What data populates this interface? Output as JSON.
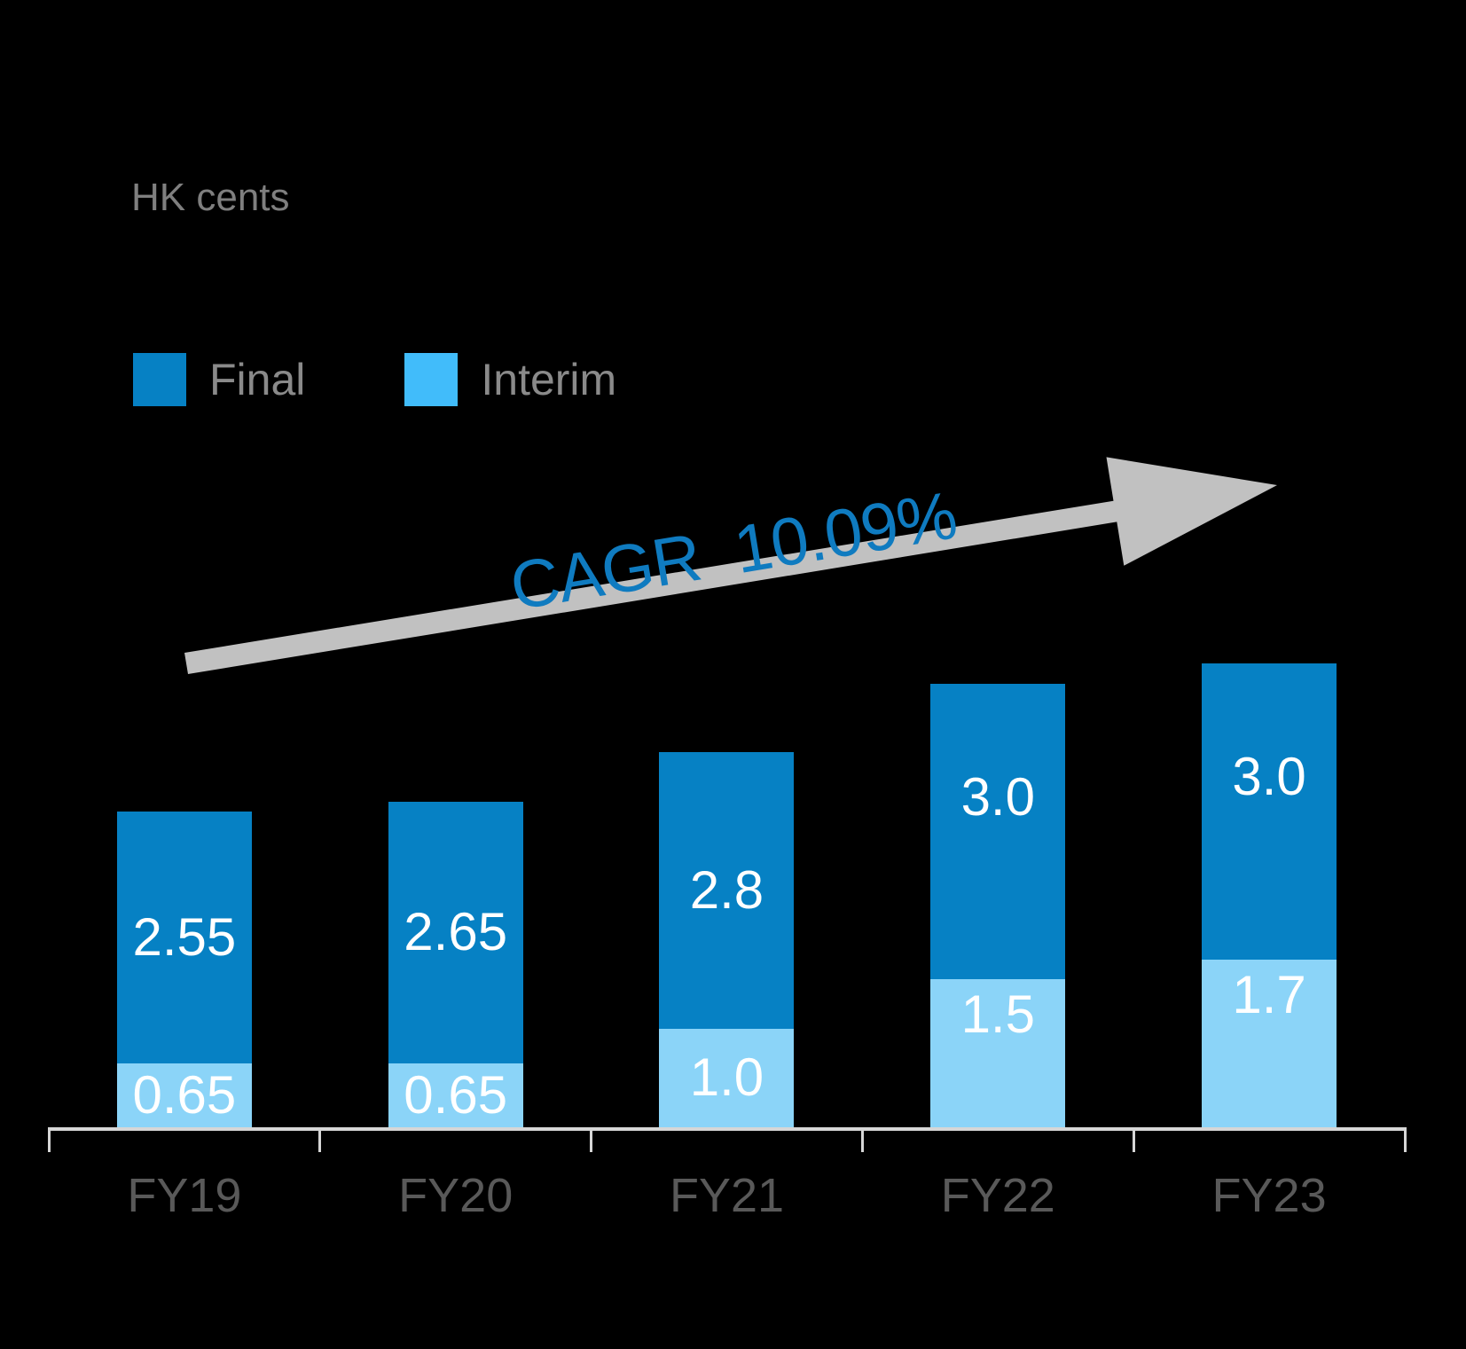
{
  "unit_label": "HK cents",
  "legend": [
    {
      "label": "Final",
      "color": "#0681c4"
    },
    {
      "label": "Interim",
      "color": "#41bcfa"
    }
  ],
  "annotation": {
    "text": "CAGR  10.09%",
    "color": "#0f7bc0",
    "arrow_color": "#c1c1c1"
  },
  "chart_data": {
    "type": "bar",
    "stacked": true,
    "title": "",
    "ylabel": "HK cents",
    "xlabel": "",
    "ylim": [
      0,
      4.7
    ],
    "grid": false,
    "legend_position": "top-left",
    "categories": [
      "FY19",
      "FY20",
      "FY21",
      "FY22",
      "FY23"
    ],
    "series": [
      {
        "name": "Interim",
        "color": "#8bd4f8",
        "values": [
          0.65,
          0.65,
          1.0,
          1.5,
          1.7
        ],
        "labels": [
          "0.65",
          "0.65",
          "1.0",
          "1.5",
          "1.7"
        ]
      },
      {
        "name": "Final",
        "color": "#0681c4",
        "values": [
          2.55,
          2.65,
          2.8,
          3.0,
          3.0
        ],
        "labels": [
          "2.55",
          "2.65",
          "2.8",
          "3.0",
          "3.0"
        ]
      }
    ],
    "totals": [
      3.2,
      3.3,
      3.8,
      4.5,
      4.7
    ],
    "annotation": "CAGR  10.09%"
  }
}
